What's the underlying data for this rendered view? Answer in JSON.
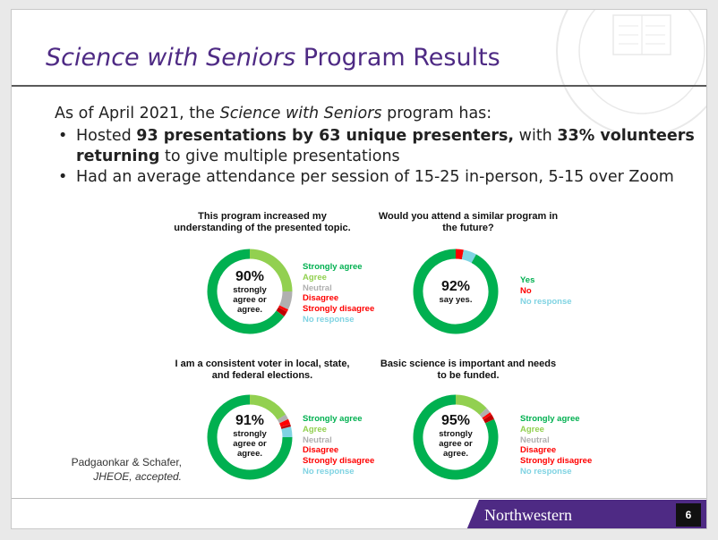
{
  "slide": {
    "title_italic": "Science with Seniors",
    "title_rest": " Program Results",
    "intro_prefix": "As of April 2021, the ",
    "intro_italic": "Science with Seniors",
    "intro_suffix": " program has:",
    "bullet1": {
      "t1": "Hosted ",
      "b1": "93 presentations by 63 unique presenters,",
      "t2": " with ",
      "b2": "33% volunteers returning",
      "t3": " to give multiple presentations"
    },
    "bullet2": "Had an average attendance per session of 15-25 in-person, 5-15 over Zoom",
    "citation_line1": "Padgaonkar & Schafer,",
    "citation_line2": "JHEOE, accepted.",
    "footer_name": "Northwestern",
    "page_number": "6"
  },
  "colors": {
    "strongly_agree": "#00b050",
    "agree": "#92d050",
    "neutral": "#b0b0b0",
    "disagree": "#ff0000",
    "strongly_disagree": "#c00000",
    "no_response": "#7fd3e2",
    "brand_purple": "#4e2a84"
  },
  "chart_data": [
    {
      "type": "pie",
      "title_line1": "This program increased my",
      "title_line2": "understanding of the presented topic.",
      "center_pct": "90%",
      "center_l1": "strongly",
      "center_l2": "agree or",
      "center_l3": "agree.",
      "categories": [
        "Strongly agree",
        "Agree",
        "Neutral",
        "Disagree",
        "Strongly disagree",
        "No response"
      ],
      "values": [
        65,
        25,
        7,
        1,
        2,
        0
      ]
    },
    {
      "type": "pie",
      "title_line1": "Would you attend a similar program in",
      "title_line2": "the future?",
      "center_pct": "92%",
      "center_l1": "say yes.",
      "center_l2": "",
      "center_l3": "",
      "categories": [
        "Yes",
        "No",
        "No response"
      ],
      "values": [
        92,
        3,
        5
      ]
    },
    {
      "type": "pie",
      "title_line1": "I am a consistent voter in local, state,",
      "title_line2": "and federal elections.",
      "center_pct": "91%",
      "center_l1": "strongly",
      "center_l2": "agree or",
      "center_l3": "agree.",
      "categories": [
        "Strongly agree",
        "Agree",
        "Neutral",
        "Disagree",
        "Strongly disagree",
        "No response"
      ],
      "values": [
        75,
        16,
        2,
        2,
        1,
        4
      ]
    },
    {
      "type": "pie",
      "title_line1": "Basic science is important and needs",
      "title_line2": "to be funded.",
      "center_pct": "95%",
      "center_l1": "strongly",
      "center_l2": "agree or",
      "center_l3": "agree.",
      "categories": [
        "Strongly agree",
        "Agree",
        "Neutral",
        "Disagree",
        "Strongly disagree",
        "No response"
      ],
      "values": [
        82,
        13,
        2,
        1,
        2,
        0
      ]
    }
  ]
}
